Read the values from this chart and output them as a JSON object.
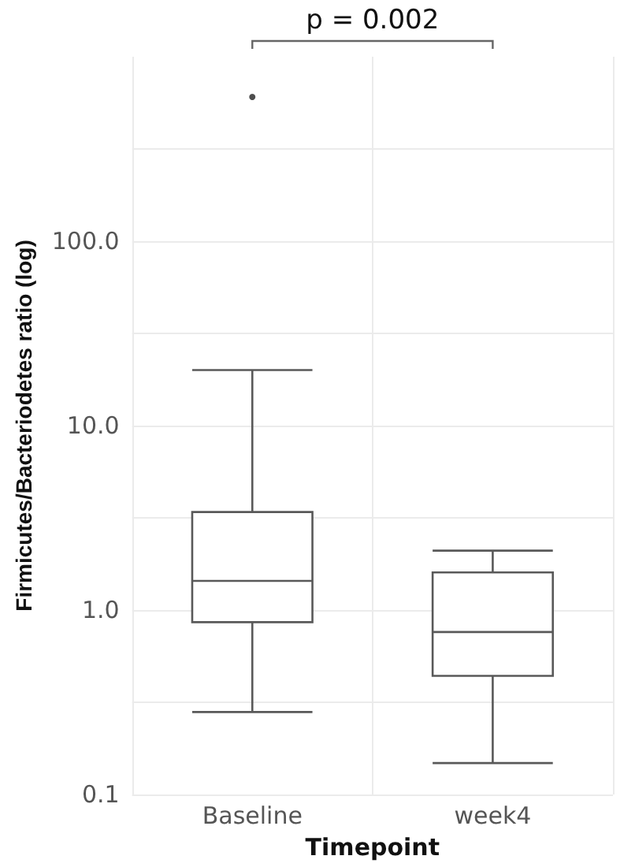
{
  "chart_data": {
    "type": "box",
    "xlabel": "Timepoint",
    "ylabel": "Firmicutes/Bacteriodetes ratio (log)",
    "categories": [
      "Baseline",
      "week4"
    ],
    "boxes": [
      {
        "low": 0.28,
        "q1": 0.86,
        "median": 1.44,
        "q3": 3.4,
        "high": 20,
        "outliers": [
          605
        ]
      },
      {
        "low": 0.148,
        "q1": 0.44,
        "median": 0.76,
        "q3": 1.6,
        "high": 2.1
      }
    ],
    "color": "#595959",
    "log": true,
    "ylim": [
      0.1,
      1000
    ],
    "yticks": [
      {
        "value": 0.1,
        "label": "0.1"
      },
      {
        "value": 0.3162,
        "label": null
      },
      {
        "value": 1,
        "label": "1.0"
      },
      {
        "value": 3.162,
        "label": null
      },
      {
        "value": 10,
        "label": "10.0"
      },
      {
        "value": 31.62,
        "label": null
      },
      {
        "value": 100,
        "label": "100.0"
      },
      {
        "value": 316.2,
        "label": null
      }
    ],
    "grid": true,
    "annotations": [
      "p = 0.002"
    ]
  }
}
